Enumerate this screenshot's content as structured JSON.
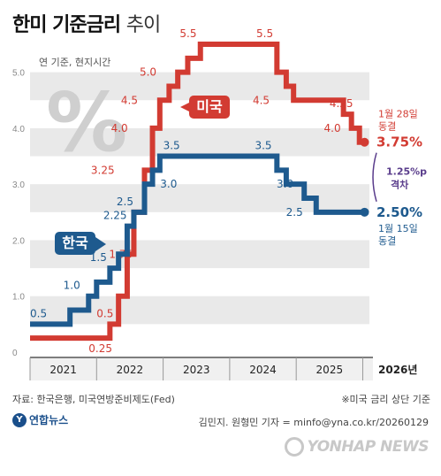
{
  "title": "한미 기준금리",
  "title_suffix": "추이",
  "unit_note": "연 기준, 현지시간",
  "percent_symbol": "%",
  "source": "자료: 한국은행, 미국연방준비제도(Fed)",
  "note": "※미국 금리 상단 기준",
  "credit": "김민지. 원형민 기자 = minfo@yna.co.kr/20260129",
  "agency": "연합뉴스",
  "watermark": "YONHAP NEWS",
  "colors": {
    "us": "#d23b32",
    "kr": "#1e5a8e",
    "band": "#e9e9e9",
    "gap": "#5a3d8c"
  },
  "chart_data": {
    "type": "line",
    "x_axis": {
      "ticks": [
        "2021",
        "2022",
        "2023",
        "2024",
        "2025"
      ],
      "end_label": "2026년",
      "range": [
        2021.0,
        2026.1
      ]
    },
    "y_axis": {
      "ticks": [
        "0",
        "1.0",
        "2.0",
        "3.0",
        "4.0",
        "5.0"
      ],
      "range": [
        0,
        5.5
      ]
    },
    "series": [
      {
        "name": "미국",
        "steps": [
          {
            "x": 2021.0,
            "y": 0.25
          },
          {
            "x": 2022.2,
            "y": 0.5
          },
          {
            "x": 2022.33,
            "y": 1.0
          },
          {
            "x": 2022.46,
            "y": 1.75
          },
          {
            "x": 2022.56,
            "y": 2.5
          },
          {
            "x": 2022.72,
            "y": 3.25
          },
          {
            "x": 2022.84,
            "y": 4.0
          },
          {
            "x": 2022.95,
            "y": 4.5
          },
          {
            "x": 2023.09,
            "y": 4.75
          },
          {
            "x": 2023.22,
            "y": 5.0
          },
          {
            "x": 2023.37,
            "y": 5.25
          },
          {
            "x": 2023.56,
            "y": 5.5
          },
          {
            "x": 2024.71,
            "y": 5.0
          },
          {
            "x": 2024.85,
            "y": 4.75
          },
          {
            "x": 2024.96,
            "y": 4.5
          },
          {
            "x": 2025.71,
            "y": 4.25
          },
          {
            "x": 2025.83,
            "y": 4.0
          },
          {
            "x": 2025.95,
            "y": 3.75
          },
          {
            "x": 2026.08,
            "y": 3.75
          }
        ],
        "labels": [
          {
            "x": 2021.88,
            "y": 0.25,
            "text": "0.25",
            "pos": "below"
          },
          {
            "x": 2022.0,
            "y": 0.5,
            "text": "0.5",
            "pos": "above"
          },
          {
            "x": 2022.08,
            "y": 1.75,
            "text": "1.75",
            "pos": "right"
          },
          {
            "x": 2022.35,
            "y": 3.25,
            "text": "3.25",
            "pos": "left"
          },
          {
            "x": 2022.55,
            "y": 4.0,
            "text": "4.0",
            "pos": "left"
          },
          {
            "x": 2022.7,
            "y": 4.5,
            "text": "4.5",
            "pos": "left"
          },
          {
            "x": 2022.98,
            "y": 5.0,
            "text": "5.0",
            "pos": "left"
          },
          {
            "x": 2023.25,
            "y": 5.5,
            "text": "5.5",
            "pos": "above"
          },
          {
            "x": 2024.4,
            "y": 5.5,
            "text": "5.5",
            "pos": "above"
          },
          {
            "x": 2024.68,
            "y": 4.5,
            "text": "4.5",
            "pos": "left"
          },
          {
            "x": 2025.5,
            "y": 4.25,
            "text": "4.25",
            "pos": "above"
          },
          {
            "x": 2025.75,
            "y": 4.0,
            "text": "4.0",
            "pos": "left"
          }
        ],
        "final_value": "3.75%",
        "final_note": [
          "1월 28일",
          "동결"
        ],
        "tag": "미국"
      },
      {
        "name": "한국",
        "steps": [
          {
            "x": 2021.0,
            "y": 0.5
          },
          {
            "x": 2021.6,
            "y": 0.75
          },
          {
            "x": 2021.88,
            "y": 1.0
          },
          {
            "x": 2022.0,
            "y": 1.25
          },
          {
            "x": 2022.2,
            "y": 1.5
          },
          {
            "x": 2022.33,
            "y": 1.75
          },
          {
            "x": 2022.46,
            "y": 2.25
          },
          {
            "x": 2022.56,
            "y": 2.5
          },
          {
            "x": 2022.72,
            "y": 3.0
          },
          {
            "x": 2022.84,
            "y": 3.25
          },
          {
            "x": 2022.95,
            "y": 3.5
          },
          {
            "x": 2024.71,
            "y": 3.25
          },
          {
            "x": 2024.85,
            "y": 3.0
          },
          {
            "x": 2025.12,
            "y": 2.75
          },
          {
            "x": 2025.3,
            "y": 2.5
          },
          {
            "x": 2026.08,
            "y": 2.5
          }
        ],
        "labels": [
          {
            "x": 2021.0,
            "y": 0.5,
            "text": "0.5",
            "pos": "above"
          },
          {
            "x": 2021.5,
            "y": 1.0,
            "text": "1.0",
            "pos": "above"
          },
          {
            "x": 2021.9,
            "y": 1.5,
            "text": "1.5",
            "pos": "above"
          },
          {
            "x": 2022.1,
            "y": 2.25,
            "text": "2.25",
            "pos": "above"
          },
          {
            "x": 2022.3,
            "y": 2.5,
            "text": "2.5",
            "pos": "above"
          },
          {
            "x": 2022.85,
            "y": 3.0,
            "text": "3.0",
            "pos": "right"
          },
          {
            "x": 2023.0,
            "y": 3.5,
            "text": "3.5",
            "pos": "above"
          },
          {
            "x": 2024.38,
            "y": 3.5,
            "text": "3.5",
            "pos": "above"
          },
          {
            "x": 2024.6,
            "y": 3.0,
            "text": "3.0",
            "pos": "right"
          },
          {
            "x": 2025.18,
            "y": 2.5,
            "text": "2.5",
            "pos": "left"
          }
        ],
        "final_value": "2.50%",
        "final_note": [
          "1월 15일",
          "동결"
        ],
        "tag": "한국"
      }
    ],
    "gap_annotation": {
      "value": "1.25%p",
      "label": "격차"
    }
  }
}
